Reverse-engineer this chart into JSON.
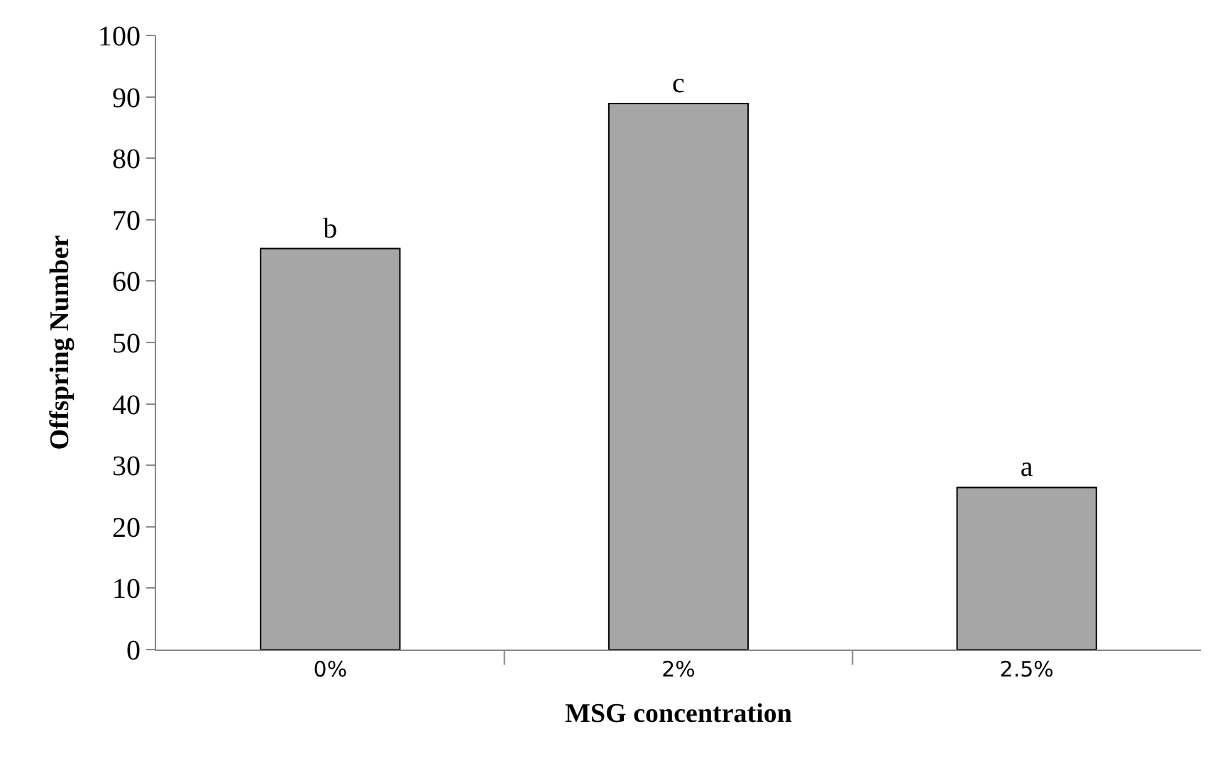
{
  "chart_data": {
    "type": "bar",
    "xlabel": "MSG concentration",
    "ylabel": "Offspring Number",
    "categories": [
      "0%",
      "2%",
      "2.5%"
    ],
    "values": [
      65.3,
      88.9,
      26.4
    ],
    "value_labels": [
      "b",
      "c",
      "a"
    ],
    "color": "#a6a6a6",
    "ylim": [
      0,
      100
    ],
    "yticks": [
      0,
      10,
      20,
      30,
      40,
      50,
      60,
      70,
      80,
      90,
      100
    ]
  }
}
